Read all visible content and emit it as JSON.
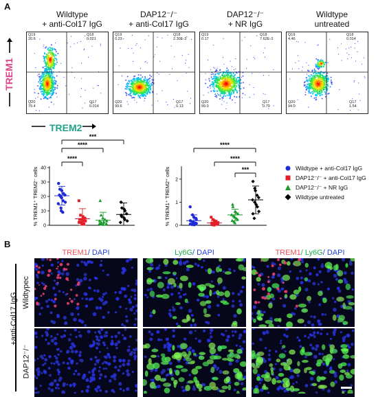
{
  "panel_a_letter": "A",
  "panel_b_letter": "B",
  "flow": {
    "columns": [
      {
        "line1": "Wildtype",
        "line2": "+ anti-Col17 IgG",
        "q19": "Q19",
        "q19v": "20.6",
        "q18": "Q18",
        "q18v": "0.021",
        "q20": "Q20",
        "q20v": "79.4",
        "q17": "Q17",
        "q17v": "0.014"
      },
      {
        "line1": "DAP12⁻/⁻",
        "line2": "+ anti-Col17 IgG",
        "q19": "Q19",
        "q19v": "0.23",
        "q18": "Q18",
        "q18v": "2.30E-3",
        "q20": "Q20",
        "q20v": "99.6",
        "q17": "Q17",
        "q17v": "0.13"
      },
      {
        "line1": "DAP12⁻/⁻",
        "line2": "+ NR IgG",
        "q19": "Q19",
        "q19v": "0.17",
        "q18": "Q18",
        "q18v": "7.62E-3",
        "q20": "Q20",
        "q20v": "99.0",
        "q17": "Q17",
        "q17v": "0.79"
      },
      {
        "line1": "Wildtype",
        "line2": "untreated",
        "q19": "Q19",
        "q19v": "4.46",
        "q18": "Q18",
        "q18v": "0.014",
        "q20": "Q20",
        "q20v": "94.0",
        "q17": "Q17",
        "q17v": "1.54"
      }
    ],
    "y_marker": "TREM1",
    "x_marker": "TREM2",
    "ticks_y": [
      "10⁵",
      "10⁴",
      "10³",
      "0",
      "-10³"
    ],
    "ticks_x": [
      "-10³",
      "0",
      "10³",
      "10⁴",
      "10⁵"
    ]
  },
  "significance": [
    "***",
    "****",
    "****",
    "****",
    "****",
    "***"
  ],
  "chart_data": [
    {
      "type": "scatter",
      "ylabel": "% TREM1⁺ TREM2⁻ cells",
      "ylim": [
        0,
        40
      ],
      "yticks": [
        "0",
        "10",
        "20",
        "30",
        "40"
      ],
      "series": [
        {
          "name": "Wildtype + anti-Col17 IgG",
          "color": "#1f2bd6",
          "mean": 20.5,
          "sd": 6.5,
          "values": [
            29,
            25,
            24,
            22,
            21,
            21,
            20,
            19,
            17,
            16,
            15,
            12,
            10,
            9
          ]
        },
        {
          "name": "DAP12⁻/⁻ + anti-Col17 IgG",
          "color": "#e21f26",
          "mean": 4.5,
          "sd": 7,
          "values": [
            17,
            7,
            6,
            5,
            5,
            4,
            4,
            4,
            3,
            3,
            2,
            2,
            1,
            1
          ]
        },
        {
          "name": "DAP12⁻/⁻ + NR IgG",
          "color": "#1a9a2c",
          "mean": 3.5,
          "sd": 5.5,
          "values": [
            17,
            7,
            5,
            4,
            3,
            3,
            2,
            2,
            2,
            1,
            1,
            1,
            0.5
          ]
        },
        {
          "name": "Wildtype untreated",
          "color": "#000000",
          "mean": 7.5,
          "sd": 8,
          "values": [
            16,
            12,
            11,
            10,
            8,
            7,
            6,
            5,
            4,
            3,
            2
          ]
        }
      ]
    },
    {
      "type": "scatter",
      "ylabel": "% TREM1⁺ TREM2⁺ cells",
      "ylim": [
        0,
        2.5
      ],
      "yticks": [
        "0",
        "1",
        "2"
      ],
      "series": [
        {
          "name": "Wildtype + anti-Col17 IgG",
          "color": "#1f2bd6",
          "mean": 0.2,
          "sd": 0.25,
          "values": [
            0.8,
            0.45,
            0.35,
            0.3,
            0.25,
            0.2,
            0.15,
            0.12,
            0.1,
            0.08,
            0.05,
            0.03,
            0.02
          ]
        },
        {
          "name": "DAP12⁻/⁻ + anti-Col17 IgG",
          "color": "#e21f26",
          "mean": 0.1,
          "sd": 0.12,
          "values": [
            0.35,
            0.25,
            0.2,
            0.15,
            0.12,
            0.1,
            0.08,
            0.06,
            0.05,
            0.04,
            0.03,
            0.02,
            0.01
          ]
        },
        {
          "name": "DAP12⁻/⁻ + NR IgG",
          "color": "#1a9a2c",
          "mean": 0.45,
          "sd": 0.25,
          "values": [
            0.9,
            0.8,
            0.6,
            0.55,
            0.5,
            0.45,
            0.4,
            0.35,
            0.3,
            0.25,
            0.2,
            0.15,
            0.1
          ]
        },
        {
          "name": "Wildtype untreated",
          "color": "#000000",
          "mean": 1.1,
          "sd": 0.6,
          "values": [
            1.9,
            1.6,
            1.5,
            1.3,
            1.2,
            1.1,
            1.0,
            0.9,
            0.8,
            0.6,
            0.5,
            0.3
          ]
        }
      ]
    }
  ],
  "legend": [
    {
      "label": "Wildtype + anti-Col17 IgG",
      "color": "#1f2bd6",
      "shape": "circle"
    },
    {
      "label": "DAP12⁻/⁻ + anti-Col17 IgG",
      "color": "#e21f26",
      "shape": "square"
    },
    {
      "label": "DAP12⁻/⁻ + NR IgG",
      "color": "#1a9a2c",
      "shape": "triangle"
    },
    {
      "label": "Wildtype untreated",
      "color": "#000000",
      "shape": "diamond"
    }
  ],
  "micro": {
    "col1_a": "TREM1",
    "col1_b": "/ DAPI",
    "col2_a": "Ly6G",
    "col2_b": "/ DAPI",
    "col3_a": "TREM1",
    "col3_b": "/ Ly6G",
    "col3_c": "/ DAPI",
    "group_label": "+anti-Col17 IgG",
    "row1": "Wildtypec",
    "row2": "DAP12⁻/⁻"
  }
}
